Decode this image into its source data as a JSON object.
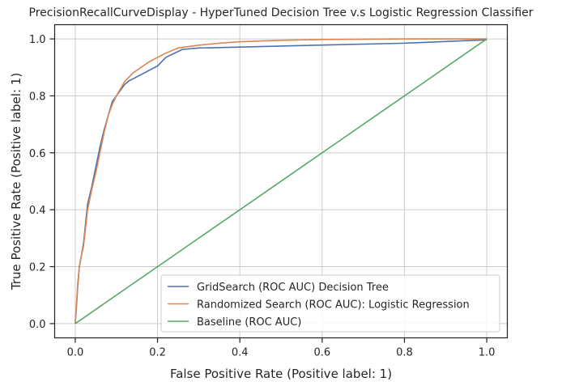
{
  "chart_data": {
    "type": "line",
    "title": "PrecisionRecallCurveDisplay - HyperTuned Decision Tree v.s Logistic Regression Classifier",
    "xlabel": "False Positive Rate (Positive label: 1)",
    "ylabel": "True Positive Rate (Positive label: 1)",
    "xlim": [
      -0.05,
      1.05
    ],
    "ylim": [
      -0.05,
      1.05
    ],
    "xticks": [
      "0.0",
      "0.2",
      "0.4",
      "0.6",
      "0.8",
      "1.0"
    ],
    "yticks": [
      "0.0",
      "0.2",
      "0.4",
      "0.6",
      "0.8",
      "1.0"
    ],
    "grid": true,
    "legend_position": "lower-right",
    "series": [
      {
        "name": "GridSearch (ROC AUC) Decision Tree",
        "color": "#4c72b0",
        "x": [
          0,
          0.003,
          0.006,
          0.01,
          0.015,
          0.02,
          0.03,
          0.04,
          0.05,
          0.06,
          0.07,
          0.08,
          0.09,
          0.1,
          0.12,
          0.13,
          0.2,
          0.22,
          0.26,
          0.3,
          0.5,
          0.8,
          1.0
        ],
        "y": [
          0,
          0.06,
          0.13,
          0.2,
          0.24,
          0.28,
          0.42,
          0.48,
          0.55,
          0.62,
          0.68,
          0.73,
          0.78,
          0.8,
          0.84,
          0.852,
          0.905,
          0.935,
          0.963,
          0.968,
          0.975,
          0.985,
          0.997
        ]
      },
      {
        "name": "Randomized Search (ROC AUC): Logistic Regression",
        "color": "#dd8452",
        "x": [
          0,
          0.003,
          0.006,
          0.01,
          0.015,
          0.02,
          0.03,
          0.04,
          0.05,
          0.06,
          0.07,
          0.08,
          0.09,
          0.1,
          0.12,
          0.14,
          0.16,
          0.18,
          0.2,
          0.22,
          0.25,
          0.3,
          0.35,
          0.4,
          0.5,
          0.6,
          0.7,
          0.8,
          0.9,
          1.0
        ],
        "y": [
          0,
          0.07,
          0.14,
          0.2,
          0.24,
          0.27,
          0.4,
          0.47,
          0.53,
          0.6,
          0.67,
          0.73,
          0.77,
          0.8,
          0.85,
          0.88,
          0.9,
          0.92,
          0.935,
          0.95,
          0.968,
          0.978,
          0.985,
          0.99,
          0.995,
          0.998,
          0.999,
          1.0,
          1.0,
          1.0
        ]
      },
      {
        "name": "Baseline (ROC AUC)",
        "color": "#55a868",
        "x": [
          0,
          1.0
        ],
        "y": [
          0,
          1.0
        ]
      }
    ]
  }
}
